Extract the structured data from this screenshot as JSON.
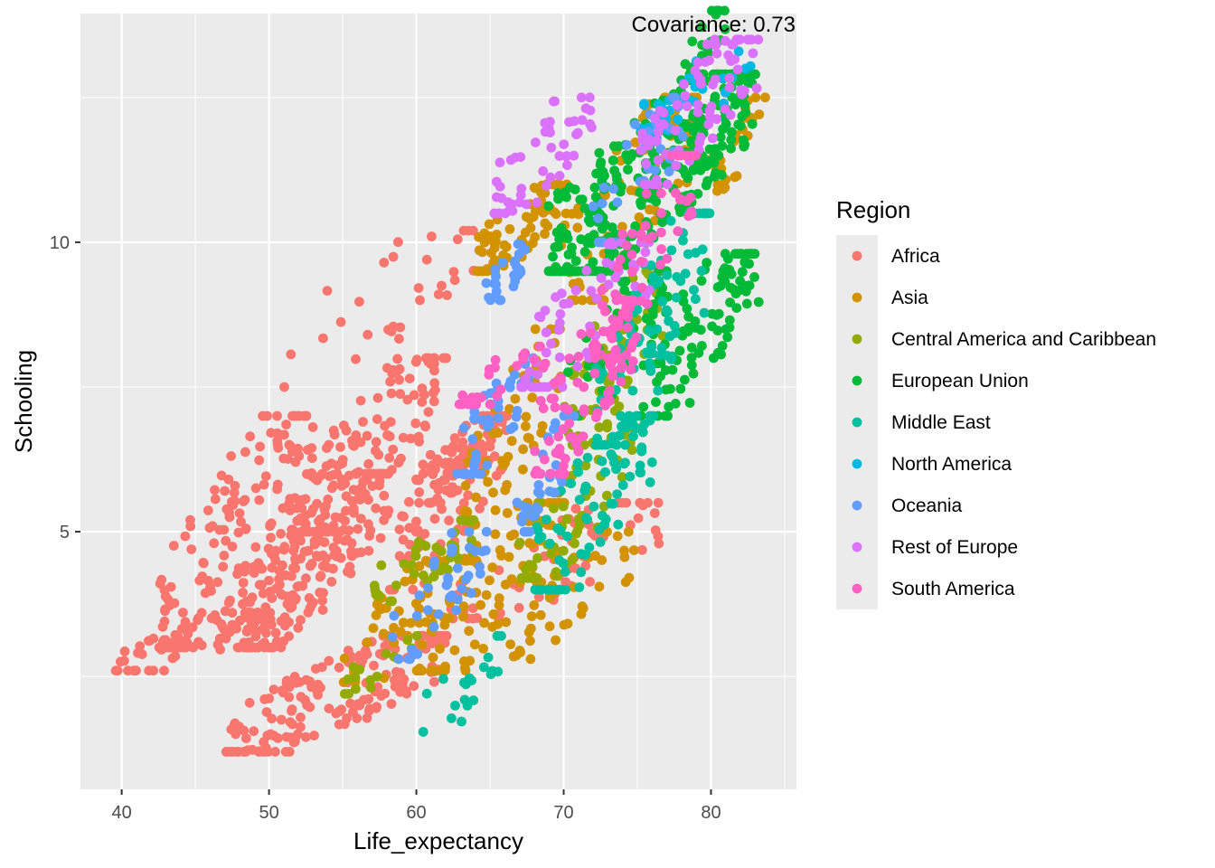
{
  "chart_data": {
    "type": "scatter",
    "annotation": "Covariance: 0.73",
    "xlabel": "Life_expectancy",
    "ylabel": "Schooling",
    "xlim": [
      37.2,
      85.8
    ],
    "ylim": [
      0.55,
      13.95
    ],
    "x_ticks": [
      40,
      50,
      60,
      70,
      80
    ],
    "x_tick_labels": [
      "40",
      "50",
      "60",
      "70",
      "80"
    ],
    "y_ticks": [
      5,
      10
    ],
    "y_tick_labels": [
      "5",
      "10"
    ],
    "grid": true,
    "legend": {
      "title": "Region",
      "placement": "right",
      "entries": [
        "Africa",
        "Asia",
        "Central America and Caribbean",
        "European Union",
        "Middle East",
        "North America",
        "Oceania",
        "Rest of Europe",
        "South America"
      ]
    },
    "colors": {
      "Africa": "#F8766D",
      "Asia": "#D39200",
      "Central America and Caribbean": "#93AA00",
      "European Union": "#00BA38",
      "Middle East": "#00C19F",
      "North America": "#00B9E3",
      "Oceania": "#619CFF",
      "Rest of Europe": "#DB72FB",
      "South America": "#FF61C3"
    },
    "series": [
      {
        "name": "Africa",
        "clusters": [
          {
            "x": [
              39.5,
              50
            ],
            "y": [
              2.6,
              3.6
            ],
            "n": 60
          },
          {
            "x": [
              42.5,
              53
            ],
            "y": [
              3,
              7
            ],
            "n": 160
          },
          {
            "x": [
              47,
              62
            ],
            "y": [
              1.2,
              3.2
            ],
            "n": 180
          },
          {
            "x": [
              48,
              58
            ],
            "y": [
              3,
              6
            ],
            "n": 220
          },
          {
            "x": [
              52,
              62
            ],
            "y": [
              5,
              8
            ],
            "n": 120
          },
          {
            "x": [
              58,
              66
            ],
            "y": [
              4,
              7
            ],
            "n": 90
          },
          {
            "x": [
              60,
              66
            ],
            "y": [
              5.5,
              7
            ],
            "n": 60
          },
          {
            "x": [
              62,
              77
            ],
            "y": [
              3.5,
              5.5
            ],
            "n": 60
          },
          {
            "x": [
              50,
              64
            ],
            "y": [
              7.5,
              10.2
            ],
            "n": 30
          }
        ]
      },
      {
        "name": "Asia",
        "clusters": [
          {
            "x": [
              55,
              62
            ],
            "y": [
              2.4,
              4.5
            ],
            "n": 40
          },
          {
            "x": [
              60,
              70
            ],
            "y": [
              2.6,
              5.5
            ],
            "n": 90
          },
          {
            "x": [
              63,
              70
            ],
            "y": [
              4.5,
              8.5
            ],
            "n": 70
          },
          {
            "x": [
              64,
              70
            ],
            "y": [
              9.5,
              11
            ],
            "n": 70
          },
          {
            "x": [
              66,
              75
            ],
            "y": [
              2.8,
              5
            ],
            "n": 40
          },
          {
            "x": [
              70,
              79
            ],
            "y": [
              9,
              12.5
            ],
            "n": 80
          },
          {
            "x": [
              80,
              84
            ],
            "y": [
              10.8,
              12.5
            ],
            "n": 25
          }
        ]
      },
      {
        "name": "Central America and Caribbean",
        "clusters": [
          {
            "x": [
              57,
              64
            ],
            "y": [
              3.8,
              5.2
            ],
            "n": 40
          },
          {
            "x": [
              55,
              60
            ],
            "y": [
              2.2,
              3.2
            ],
            "n": 15
          },
          {
            "x": [
              67,
              75
            ],
            "y": [
              4.2,
              6.8
            ],
            "n": 60
          },
          {
            "x": [
              70,
              77
            ],
            "y": [
              6.5,
              9.5
            ],
            "n": 70
          }
        ]
      },
      {
        "name": "European Union",
        "clusters": [
          {
            "x": [
              69,
              83
            ],
            "y": [
              9.5,
              12.9
            ],
            "n": 330
          },
          {
            "x": [
              75,
              83
            ],
            "y": [
              7,
              9.8
            ],
            "n": 100
          },
          {
            "x": [
              78,
              81
            ],
            "y": [
              12.8,
              14
            ],
            "n": 25
          },
          {
            "x": [
              70,
              77
            ],
            "y": [
              7,
              9.5
            ],
            "n": 50
          }
        ]
      },
      {
        "name": "Middle East",
        "clusters": [
          {
            "x": [
              60.5,
              66
            ],
            "y": [
              1.5,
              3.2
            ],
            "n": 20
          },
          {
            "x": [
              68,
              76
            ],
            "y": [
              4,
              7
            ],
            "n": 80
          },
          {
            "x": [
              72,
              80
            ],
            "y": [
              6.5,
              10.5
            ],
            "n": 90
          }
        ]
      },
      {
        "name": "North America",
        "clusters": [
          {
            "x": [
              75,
              82.5
            ],
            "y": [
              11.8,
              13.3
            ],
            "n": 40
          }
        ]
      },
      {
        "name": "Oceania",
        "clusters": [
          {
            "x": [
              58,
              65
            ],
            "y": [
              2.8,
              5
            ],
            "n": 40
          },
          {
            "x": [
              63,
              68
            ],
            "y": [
              6,
              8
            ],
            "n": 40
          },
          {
            "x": [
              65,
              67.5
            ],
            "y": [
              9,
              10
            ],
            "n": 25
          },
          {
            "x": [
              67,
              71
            ],
            "y": [
              5,
              7
            ],
            "n": 30
          },
          {
            "x": [
              72,
              78
            ],
            "y": [
              10,
              12.5
            ],
            "n": 35
          }
        ]
      },
      {
        "name": "Rest of Europe",
        "clusters": [
          {
            "x": [
              65,
              72
            ],
            "y": [
              10.5,
              12.5
            ],
            "n": 50
          },
          {
            "x": [
              67,
              76
            ],
            "y": [
              7.5,
              10
            ],
            "n": 60
          },
          {
            "x": [
              75,
              83
            ],
            "y": [
              11,
              13.5
            ],
            "n": 80
          }
        ]
      },
      {
        "name": "South America",
        "clusters": [
          {
            "x": [
              63,
              69
            ],
            "y": [
              7.2,
              8.2
            ],
            "n": 25
          },
          {
            "x": [
              68,
              75
            ],
            "y": [
              6,
              9
            ],
            "n": 90
          },
          {
            "x": [
              72,
              79
            ],
            "y": [
              8,
              11.5
            ],
            "n": 60
          }
        ]
      }
    ]
  }
}
